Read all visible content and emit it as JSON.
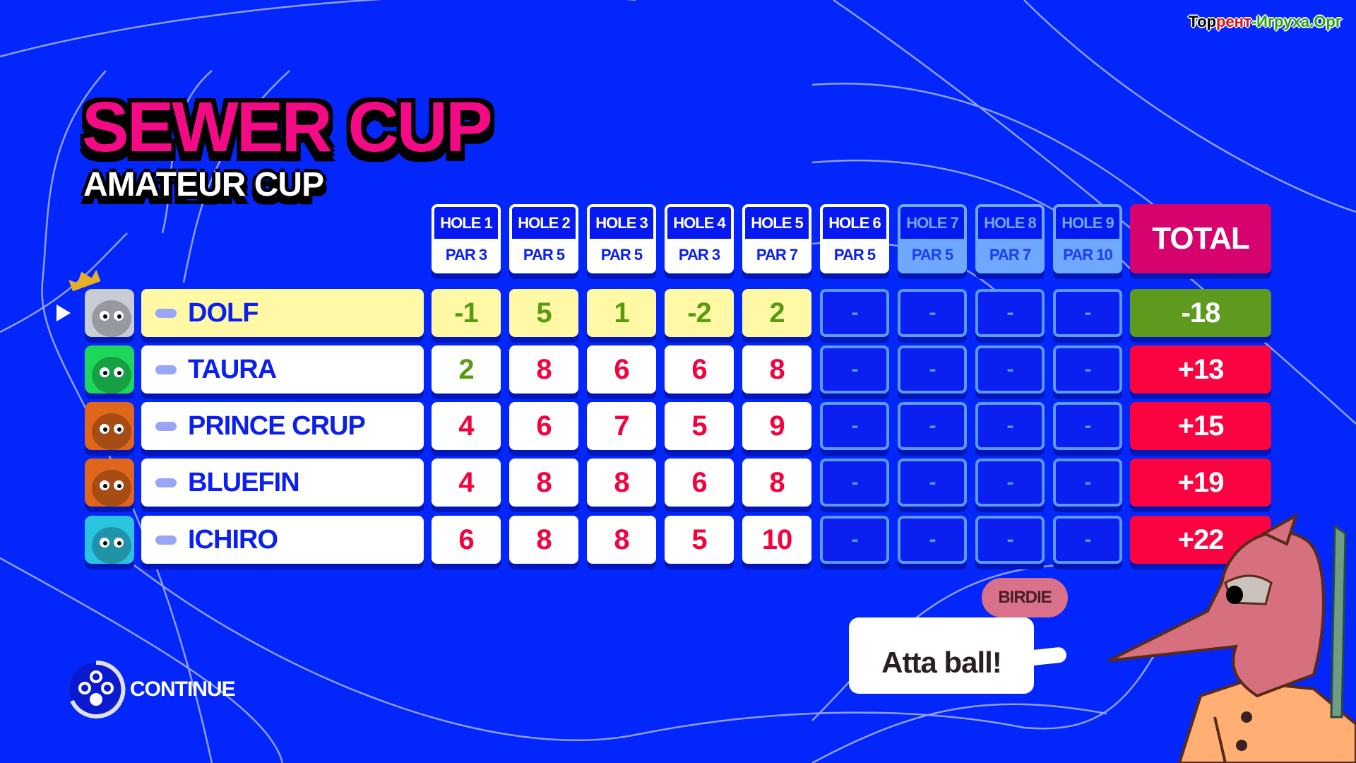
{
  "watermark": {
    "part1": "Тор",
    "part2": "рент",
    "part3": "-Игруха.Орг"
  },
  "title": {
    "main": "SEWER CUP",
    "sub": "AMATEUR CUP"
  },
  "holes": [
    {
      "label": "HOLE 1",
      "par": "PAR 3",
      "played": true
    },
    {
      "label": "HOLE 2",
      "par": "PAR 5",
      "played": true
    },
    {
      "label": "HOLE 3",
      "par": "PAR 5",
      "played": true
    },
    {
      "label": "HOLE 4",
      "par": "PAR 3",
      "played": true
    },
    {
      "label": "HOLE 5",
      "par": "PAR 7",
      "played": true
    },
    {
      "label": "HOLE 6",
      "par": "PAR 5",
      "played": true
    },
    {
      "label": "HOLE 7",
      "par": "PAR 5",
      "played": false
    },
    {
      "label": "HOLE 8",
      "par": "PAR 7",
      "played": false
    },
    {
      "label": "HOLE 9",
      "par": "PAR 10",
      "played": false
    }
  ],
  "total_label": "TOTAL",
  "players": [
    {
      "name": "DOLF",
      "leader": true,
      "current": true,
      "avatar_color": "#c9ccd4",
      "scores": [
        "-1",
        "5",
        "1",
        "-2",
        "2",
        "-",
        "-",
        "-",
        "-"
      ],
      "good": [
        true,
        true,
        true,
        true,
        true
      ],
      "total": "-18",
      "total_good": true
    },
    {
      "name": "TAURA",
      "leader": false,
      "avatar_color": "#1ed65a",
      "scores": [
        "2",
        "8",
        "6",
        "6",
        "8",
        "-",
        "-",
        "-",
        "-"
      ],
      "good": [
        true,
        false,
        false,
        false,
        false
      ],
      "total": "+13",
      "total_good": false
    },
    {
      "name": "PRINCE CRUP",
      "leader": false,
      "avatar_color": "#e0661c",
      "scores": [
        "4",
        "6",
        "7",
        "5",
        "9",
        "-",
        "-",
        "-",
        "-"
      ],
      "good": [
        false,
        false,
        false,
        false,
        false
      ],
      "total": "+15",
      "total_good": false
    },
    {
      "name": "BLUEFIN",
      "leader": false,
      "avatar_color": "#e0661c",
      "scores": [
        "4",
        "8",
        "8",
        "6",
        "8",
        "-",
        "-",
        "-",
        "-"
      ],
      "good": [
        false,
        false,
        false,
        false,
        false
      ],
      "total": "+19",
      "total_good": false
    },
    {
      "name": "ICHIRO",
      "leader": false,
      "avatar_color": "#2bc4e0",
      "scores": [
        "6",
        "8",
        "8",
        "5",
        "10",
        "-",
        "-",
        "-",
        "-"
      ],
      "good": [
        false,
        false,
        false,
        false,
        false
      ],
      "total": "+22",
      "total_good": false
    }
  ],
  "continue_label": "CONTINUE",
  "speech": {
    "tag": "BIRDIE",
    "text": "Atta ball!"
  },
  "colors": {
    "background": "#0326fb",
    "title": "#f50a86",
    "total_header": "#d6036f",
    "bad": "#fb0340",
    "good": "#5e9a1e",
    "leader_row": "#fff9a6"
  }
}
